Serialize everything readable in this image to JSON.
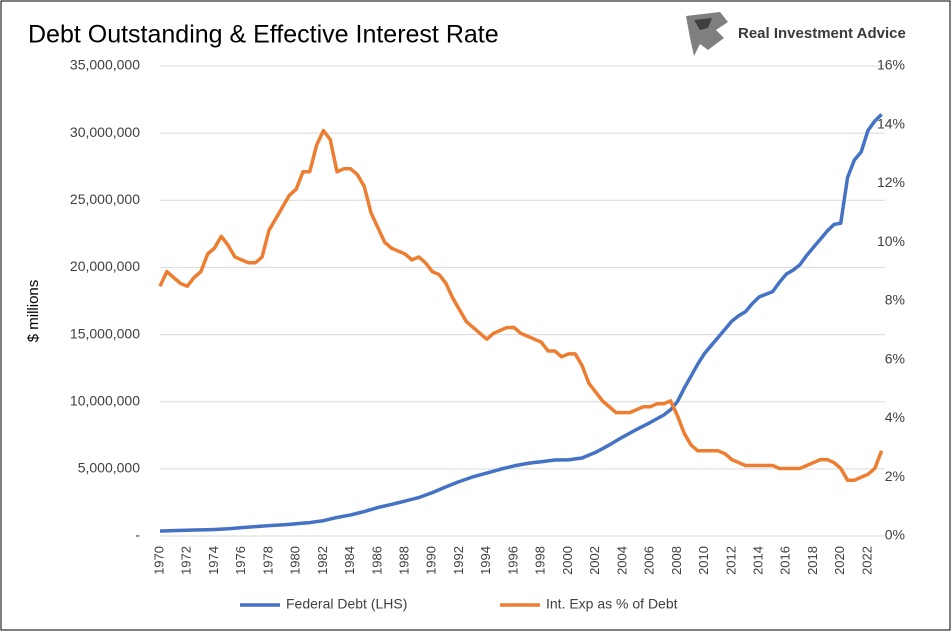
{
  "brand": "Real Investment Advice",
  "chart_data": {
    "type": "line",
    "title": "Debt Outstanding & Effective Interest Rate",
    "y_label": "$ millions",
    "x": [
      1970,
      1970.5,
      1971,
      1971.5,
      1972,
      1972.5,
      1973,
      1973.5,
      1974,
      1974.5,
      1975,
      1975.5,
      1976,
      1976.5,
      1977,
      1977.5,
      1978,
      1978.5,
      1979,
      1979.5,
      1980,
      1980.5,
      1981,
      1981.5,
      1982,
      1982.5,
      1983,
      1983.5,
      1984,
      1984.5,
      1985,
      1985.5,
      1986,
      1986.5,
      1987,
      1987.5,
      1988,
      1988.5,
      1989,
      1989.5,
      1990,
      1990.5,
      1991,
      1991.5,
      1992,
      1992.5,
      1993,
      1993.5,
      1994,
      1994.5,
      1995,
      1995.5,
      1996,
      1996.5,
      1997,
      1997.5,
      1998,
      1998.5,
      1999,
      1999.5,
      2000,
      2000.5,
      2001,
      2001.5,
      2002,
      2002.5,
      2003,
      2003.5,
      2004,
      2004.5,
      2005,
      2005.5,
      2006,
      2006.5,
      2007,
      2007.5,
      2008,
      2008.5,
      2009,
      2009.5,
      2010,
      2010.5,
      2011,
      2011.5,
      2012,
      2012.5,
      2013,
      2013.5,
      2014,
      2014.5,
      2015,
      2015.5,
      2016,
      2016.5,
      2017,
      2017.5,
      2018,
      2018.5,
      2019,
      2019.5,
      2020,
      2020.5,
      2021,
      2021.5,
      2022,
      2022.5,
      2023
    ],
    "xlim": [
      1970,
      2023.25
    ],
    "xticks": [
      1970,
      1972,
      1974,
      1976,
      1978,
      1980,
      1982,
      1984,
      1986,
      1988,
      1990,
      1992,
      1994,
      1996,
      1998,
      2000,
      2002,
      2004,
      2006,
      2008,
      2010,
      2012,
      2014,
      2016,
      2018,
      2020,
      2022
    ],
    "ylim": [
      0,
      35000000
    ],
    "yticks": [
      {
        "value": 0,
        "label": "-"
      },
      {
        "value": 5000000,
        "label": "5,000,000"
      },
      {
        "value": 10000000,
        "label": "10,000,000"
      },
      {
        "value": 15000000,
        "label": "15,000,000"
      },
      {
        "value": 20000000,
        "label": "20,000,000"
      },
      {
        "value": 25000000,
        "label": "25,000,000"
      },
      {
        "value": 30000000,
        "label": "30,000,000"
      },
      {
        "value": 35000000,
        "label": "35,000,000"
      }
    ],
    "y2lim": [
      0,
      16
    ],
    "y2ticks": [
      {
        "value": 0,
        "label": "0%"
      },
      {
        "value": 2,
        "label": "2%"
      },
      {
        "value": 4,
        "label": "4%"
      },
      {
        "value": 6,
        "label": "6%"
      },
      {
        "value": 8,
        "label": "8%"
      },
      {
        "value": 10,
        "label": "10%"
      },
      {
        "value": 12,
        "label": "12%"
      },
      {
        "value": 14,
        "label": "14%"
      },
      {
        "value": 16,
        "label": "16%"
      }
    ],
    "grid": true,
    "legend": "bottom",
    "series": [
      {
        "name": "Federal Debt (LHS)",
        "color": "#4472c4",
        "axis": "y",
        "values": [
          370000,
          385000,
          400000,
          415000,
          430000,
          445000,
          460000,
          470000,
          480000,
          510000,
          540000,
          580000,
          620000,
          660000,
          700000,
          735000,
          770000,
          800000,
          830000,
          870000,
          910000,
          955000,
          1000000,
          1070000,
          1140000,
          1260000,
          1380000,
          1475000,
          1570000,
          1695000,
          1820000,
          1970000,
          2120000,
          2235000,
          2350000,
          2475000,
          2600000,
          2730000,
          2860000,
          3045000,
          3230000,
          3445000,
          3660000,
          3860000,
          4060000,
          4235000,
          4410000,
          4550000,
          4690000,
          4830000,
          4970000,
          5095000,
          5220000,
          5315000,
          5410000,
          5470000,
          5530000,
          5595000,
          5660000,
          5665000,
          5670000,
          5740000,
          5810000,
          6020000,
          6230000,
          6505000,
          6780000,
          7080000,
          7380000,
          7655000,
          7930000,
          8190000,
          8450000,
          8730000,
          9010000,
          9400000,
          10000000,
          11000000,
          11900000,
          12800000,
          13600000,
          14200000,
          14800000,
          15400000,
          16000000,
          16400000,
          16700000,
          17300000,
          17800000,
          18000000,
          18200000,
          18900000,
          19500000,
          19800000,
          20200000,
          20900000,
          21500000,
          22100000,
          22700000,
          23200000,
          23300000,
          26700000,
          28000000,
          28600000,
          30200000,
          30900000,
          31400000
        ]
      },
      {
        "name": "Int. Exp as % of Debt",
        "color": "#ed7d31",
        "axis": "y2",
        "values": [
          8.5,
          9.0,
          8.8,
          8.6,
          8.5,
          8.8,
          9.0,
          9.6,
          9.8,
          10.2,
          9.9,
          9.5,
          9.4,
          9.3,
          9.3,
          9.5,
          10.4,
          10.8,
          11.2,
          11.6,
          11.8,
          12.4,
          12.4,
          13.3,
          13.8,
          13.5,
          12.4,
          12.5,
          12.5,
          12.3,
          11.9,
          11.0,
          10.5,
          10.0,
          9.8,
          9.7,
          9.6,
          9.4,
          9.5,
          9.3,
          9.0,
          8.9,
          8.6,
          8.1,
          7.7,
          7.3,
          7.1,
          6.9,
          6.7,
          6.9,
          7.0,
          7.1,
          7.1,
          6.9,
          6.8,
          6.7,
          6.6,
          6.3,
          6.3,
          6.1,
          6.2,
          6.2,
          5.8,
          5.2,
          4.9,
          4.6,
          4.4,
          4.2,
          4.2,
          4.2,
          4.3,
          4.4,
          4.4,
          4.5,
          4.5,
          4.6,
          4.1,
          3.5,
          3.1,
          2.9,
          2.9,
          2.9,
          2.9,
          2.8,
          2.6,
          2.5,
          2.4,
          2.4,
          2.4,
          2.4,
          2.4,
          2.3,
          2.3,
          2.3,
          2.3,
          2.4,
          2.5,
          2.6,
          2.6,
          2.5,
          2.3,
          1.9,
          1.9,
          2.0,
          2.1,
          2.3,
          2.9
        ]
      }
    ]
  }
}
